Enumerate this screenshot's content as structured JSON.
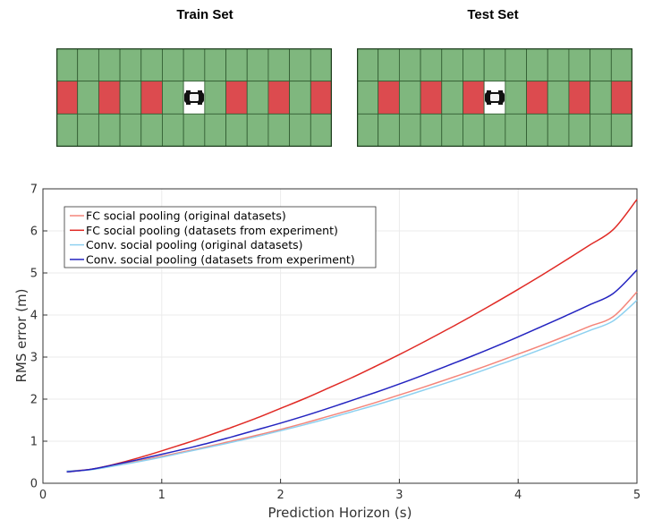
{
  "panels": {
    "train": {
      "title": "Train Set",
      "rows": [
        "GGGGGGGGGGGGG",
        "RGRGRGCGRGRGR",
        "GGGGGGGGGGGGG"
      ]
    },
    "test": {
      "title": "Test Set",
      "rows": [
        "GGGGGGGGGGGGG",
        "GRGRGRCGRGRGR",
        "GGGGGGGGGGGGG"
      ]
    },
    "colors": {
      "free": "#7fb77e",
      "occupied": "#dc4b4f",
      "ego": "#ffffff",
      "border": "#2f5a2f"
    }
  },
  "chart_data": {
    "type": "line",
    "xlabel": "Prediction Horizon (s)",
    "ylabel": "RMS error (m)",
    "xlim": [
      0,
      5
    ],
    "ylim": [
      0,
      7
    ],
    "xticks": [
      0,
      1,
      2,
      3,
      4,
      5
    ],
    "yticks": [
      0,
      1,
      2,
      3,
      4,
      5,
      6,
      7
    ],
    "grid": true,
    "legend_position": "top-left",
    "x": [
      0.2,
      0.4,
      0.6,
      0.8,
      1.0,
      1.2,
      1.4,
      1.6,
      1.8,
      2.0,
      2.2,
      2.4,
      2.6,
      2.8,
      3.0,
      3.2,
      3.4,
      3.6,
      3.8,
      4.0,
      4.2,
      4.4,
      4.6,
      4.8,
      5.0
    ],
    "series": [
      {
        "name": "FC social pooling (original datasets)",
        "color": "#f4857a",
        "values": [
          0.29,
          0.33,
          0.43,
          0.53,
          0.64,
          0.76,
          0.88,
          1.01,
          1.14,
          1.28,
          1.43,
          1.59,
          1.75,
          1.92,
          2.1,
          2.28,
          2.47,
          2.66,
          2.86,
          3.07,
          3.28,
          3.5,
          3.73,
          3.96,
          4.55
        ]
      },
      {
        "name": "FC social pooling (datasets from experiment)",
        "color": "#e02a25",
        "values": [
          0.27,
          0.33,
          0.45,
          0.6,
          0.77,
          0.95,
          1.14,
          1.34,
          1.55,
          1.78,
          2.01,
          2.26,
          2.51,
          2.78,
          3.06,
          3.35,
          3.65,
          3.96,
          4.28,
          4.61,
          4.95,
          5.3,
          5.66,
          6.03,
          6.75
        ]
      },
      {
        "name": "Conv. social pooling (original datasets)",
        "color": "#8ed1f0",
        "values": [
          0.29,
          0.32,
          0.41,
          0.51,
          0.62,
          0.74,
          0.86,
          0.98,
          1.11,
          1.25,
          1.39,
          1.54,
          1.7,
          1.86,
          2.03,
          2.21,
          2.39,
          2.58,
          2.78,
          2.98,
          3.19,
          3.41,
          3.63,
          3.86,
          4.35
        ]
      },
      {
        "name": "Conv. social pooling (datasets from experiment)",
        "color": "#2424c0",
        "values": [
          0.27,
          0.33,
          0.44,
          0.56,
          0.69,
          0.82,
          0.96,
          1.11,
          1.27,
          1.43,
          1.6,
          1.78,
          1.97,
          2.16,
          2.36,
          2.57,
          2.79,
          3.01,
          3.24,
          3.48,
          3.73,
          3.98,
          4.24,
          4.51,
          5.07
        ]
      }
    ]
  }
}
